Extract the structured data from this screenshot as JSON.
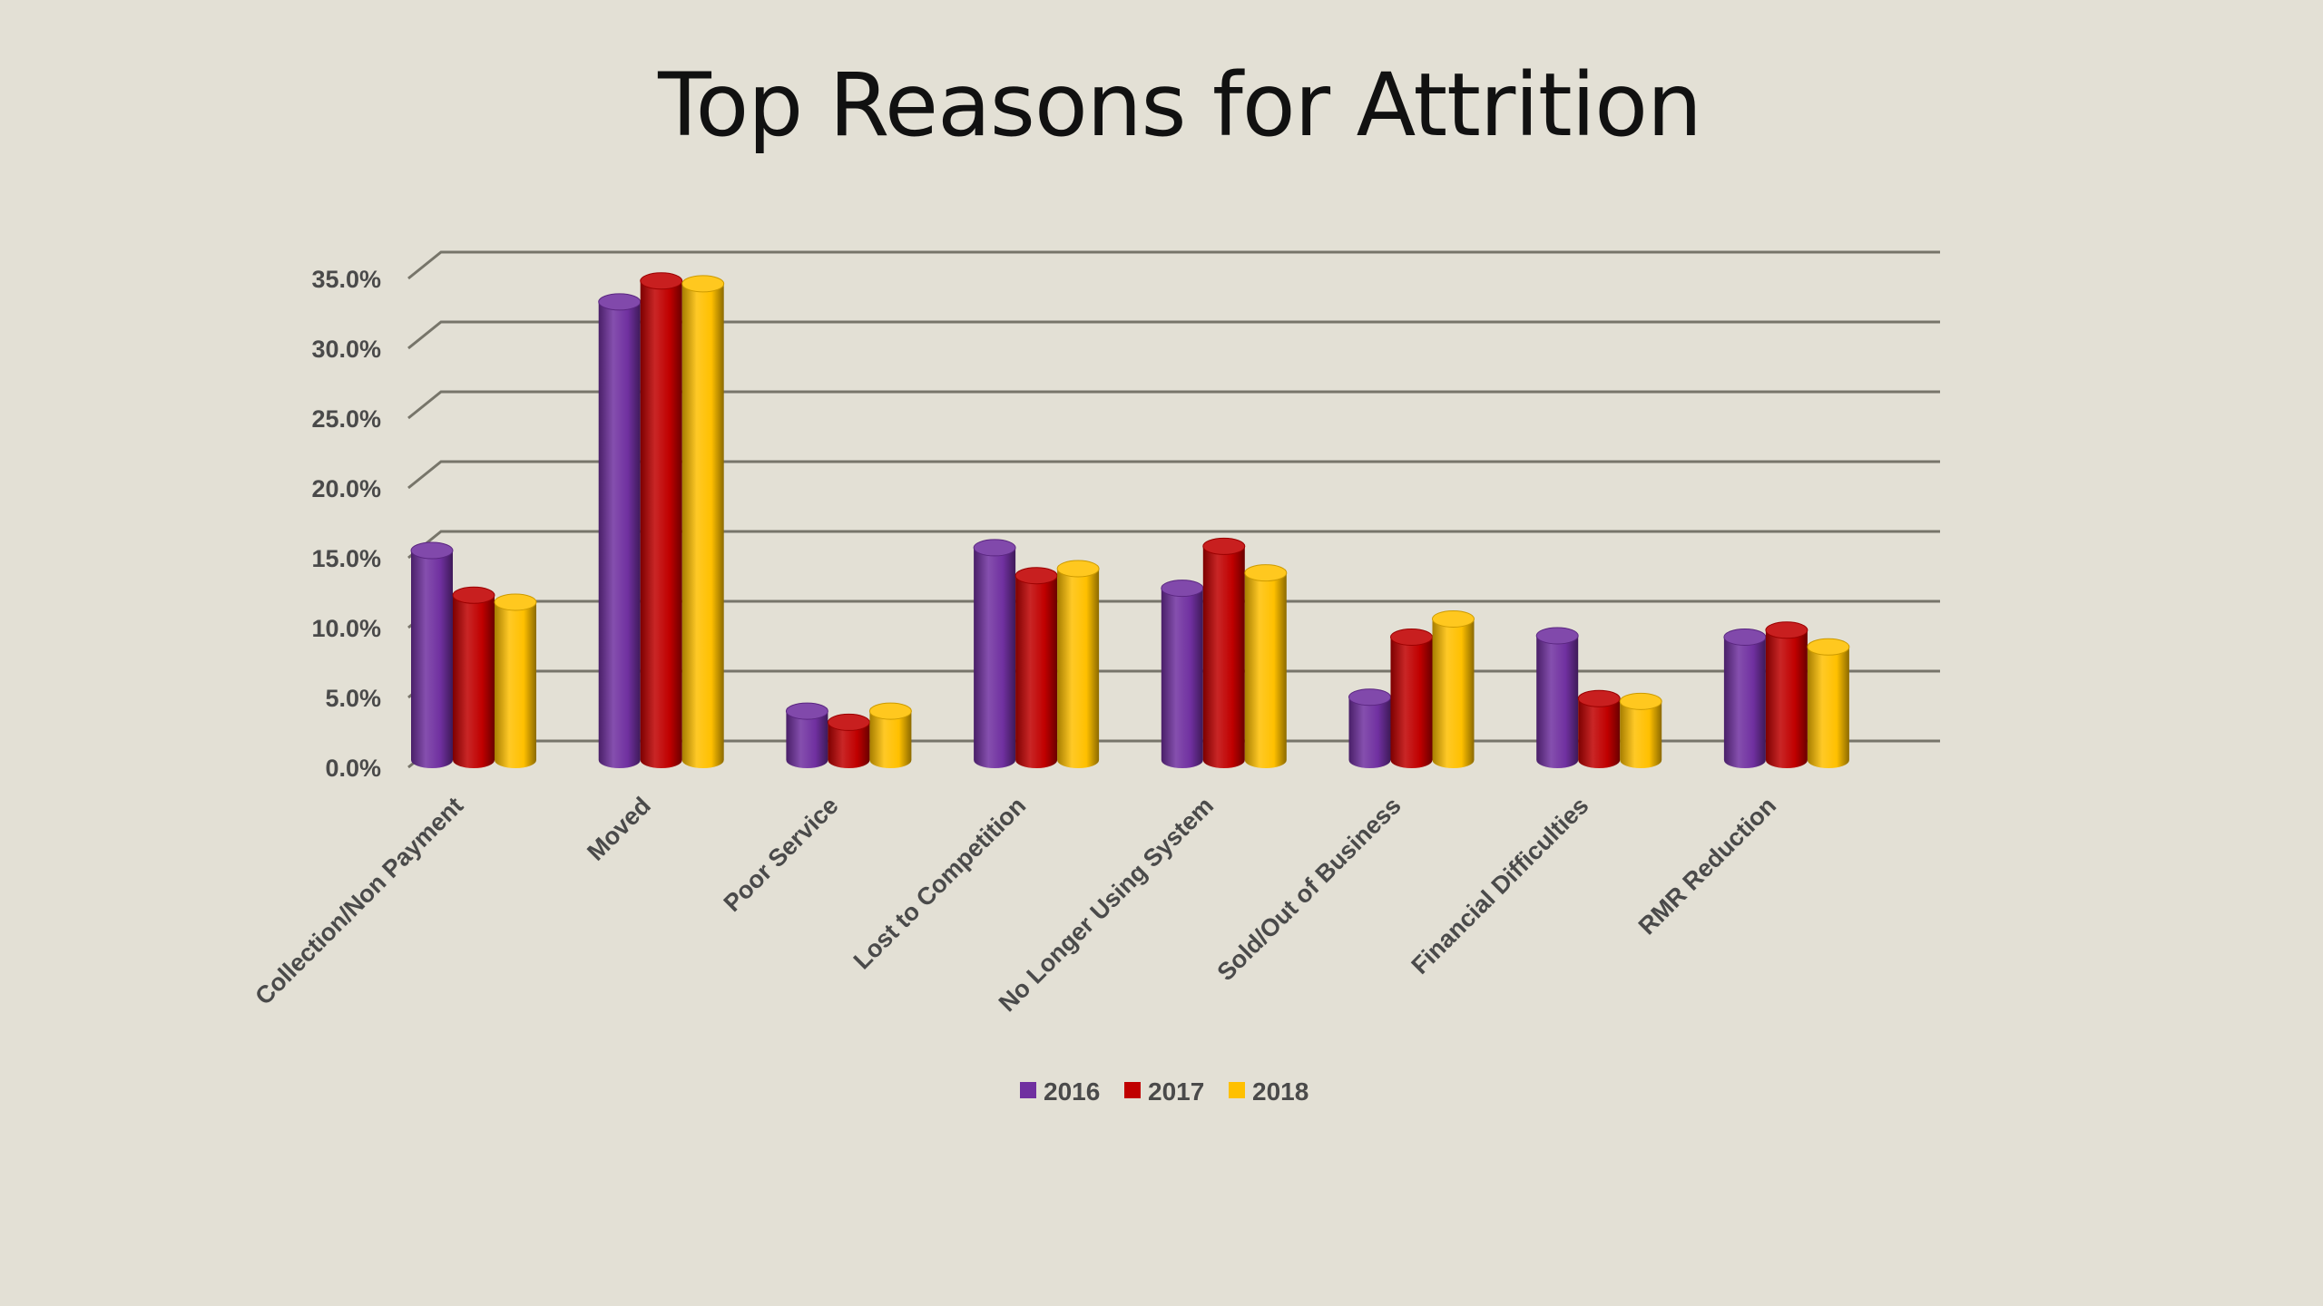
{
  "chart_data": {
    "type": "bar",
    "title": "Top Reasons for Attrition",
    "categories": [
      "Collection/Non Payment",
      "Moved",
      "Poor Service",
      "Lost to Competition",
      "No Longer Using System",
      "Sold/Out of Business",
      "Financial Difficulties",
      "RMR Reduction"
    ],
    "series": [
      {
        "name": "2016",
        "color": "#7030a0",
        "values": [
          15.0,
          32.8,
          3.5,
          15.2,
          12.3,
          4.5,
          8.9,
          8.8
        ]
      },
      {
        "name": "2017",
        "color": "#c00000",
        "values": [
          11.8,
          34.3,
          2.7,
          13.2,
          15.3,
          8.8,
          4.4,
          9.3
        ]
      },
      {
        "name": "2018",
        "color": "#ffc000",
        "values": [
          11.3,
          34.1,
          3.5,
          13.7,
          13.4,
          10.1,
          4.2,
          8.1
        ]
      }
    ],
    "ylim": [
      0,
      35
    ],
    "yticks": [
      "0.0%",
      "5.0%",
      "10.0%",
      "15.0%",
      "20.0%",
      "25.0%",
      "30.0%",
      "35.0%"
    ],
    "grid": true,
    "legend_position": "bottom",
    "style": "3d-cylinder"
  }
}
